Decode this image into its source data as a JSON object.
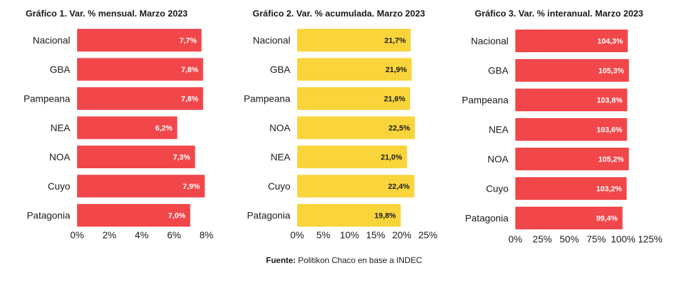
{
  "chart_data": [
    {
      "type": "bar",
      "orientation": "horizontal",
      "title": "Gráfico 1. Var. % mensual. Marzo 2023",
      "categories": [
        "Nacional",
        "GBA",
        "Pampeana",
        "NEA",
        "NOA",
        "Cuyo",
        "Patagonia"
      ],
      "values": [
        7.7,
        7.8,
        7.8,
        6.2,
        7.3,
        7.9,
        7.0
      ],
      "value_labels": [
        "7,7%",
        "7,8%",
        "7,8%",
        "6,2%",
        "7,3%",
        "7,9%",
        "7,0%"
      ],
      "xticks": [
        "0%",
        "2%",
        "4%",
        "6%",
        "8%"
      ],
      "xlim": [
        0,
        8
      ],
      "bar_color": "#f2474a",
      "label_color": "#ffffff",
      "grid": false
    },
    {
      "type": "bar",
      "orientation": "horizontal",
      "title": "Gráfico 2. Var. % acumulada. Marzo 2023",
      "categories": [
        "Nacional",
        "GBA",
        "Pampeana",
        "NOA",
        "NEA",
        "Cuyo",
        "Patagonia"
      ],
      "values": [
        21.7,
        21.9,
        21.6,
        22.5,
        21.0,
        22.4,
        19.8
      ],
      "value_labels": [
        "21,7%",
        "21,9%",
        "21,6%",
        "22,5%",
        "21,0%",
        "22,4%",
        "19,8%"
      ],
      "xticks": [
        "0%",
        "5%",
        "10%",
        "15%",
        "20%",
        "25%"
      ],
      "xlim": [
        0,
        25
      ],
      "bar_color": "#f9d43b",
      "label_color": "#1a1a1a",
      "grid": false
    },
    {
      "type": "bar",
      "orientation": "horizontal",
      "title": "Gráfico 3. Var. % interanual. Marzo 2023",
      "categories": [
        "Nacional",
        "GBA",
        "Pampeana",
        "NEA",
        "NOA",
        "Cuyo",
        "Patagonia"
      ],
      "values": [
        104.3,
        105.3,
        103.8,
        103.6,
        105.2,
        103.2,
        99.4
      ],
      "value_labels": [
        "104,3%",
        "105,3%",
        "103,8%",
        "103,6%",
        "105,2%",
        "103,2%",
        "99,4%"
      ],
      "xticks": [
        "0%",
        "25%",
        "50%",
        "75%",
        "100%",
        "125%"
      ],
      "xlim": [
        0,
        125
      ],
      "bar_color": "#f2474a",
      "label_color": "#ffffff",
      "grid": false
    }
  ],
  "footer": {
    "source_label": "Fuente:",
    "source_text": " Politikon Chaco en base a INDEC"
  }
}
